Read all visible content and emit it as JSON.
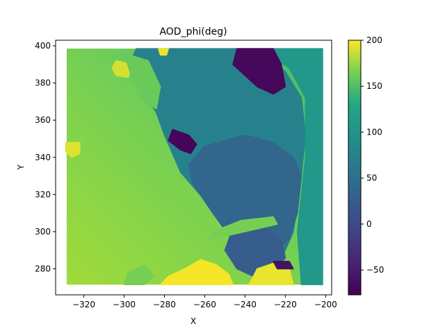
{
  "chart_data": {
    "type": "heatmap",
    "title": "AOD_phi(deg)",
    "xlabel": "X",
    "ylabel": "Y",
    "xlim": [
      -334,
      -197
    ],
    "ylim": [
      266,
      403
    ],
    "x_range": [
      -328.5,
      -201.5
    ],
    "y_range": [
      271.5,
      398.5
    ],
    "grid": false,
    "x_ticks": [
      -320,
      -300,
      -280,
      -260,
      -240,
      -220,
      -200
    ],
    "y_ticks": [
      280,
      300,
      320,
      340,
      360,
      380,
      400
    ],
    "x_tick_labels": [
      "−320",
      "−300",
      "−280",
      "−260",
      "−240",
      "−220",
      "−200"
    ],
    "y_tick_labels": [
      "280",
      "300",
      "320",
      "340",
      "360",
      "380",
      "400"
    ],
    "colorbar": {
      "colormap": "viridis",
      "vmin": -77,
      "vmax": 200,
      "ticks": [
        -50,
        0,
        50,
        100,
        150,
        200
      ],
      "tick_labels": [
        "−50",
        "0",
        "50",
        "100",
        "150",
        "200"
      ]
    },
    "regions": [
      {
        "desc": "background gradient",
        "value": 140
      },
      {
        "desc": "upper diagonal band",
        "value": 75,
        "polygon": [
          [
            -294,
            398.5
          ],
          [
            -232,
            398.5
          ],
          [
            -220,
            386
          ],
          [
            -212,
            372
          ],
          [
            -210,
            352
          ],
          [
            -212,
            330
          ],
          [
            -216,
            300
          ],
          [
            -222,
            285
          ],
          [
            -232,
            278
          ],
          [
            -240,
            286
          ],
          [
            -246,
            296
          ],
          [
            -252,
            304
          ],
          [
            -256,
            312
          ],
          [
            -264,
            322
          ],
          [
            -272,
            332
          ],
          [
            -276,
            342
          ],
          [
            -280,
            352
          ],
          [
            -284,
            364
          ],
          [
            -290,
            374
          ],
          [
            -298,
            388
          ]
        ]
      },
      {
        "desc": "right green strip",
        "value": 108,
        "polygon": [
          [
            -232,
            398.5
          ],
          [
            -201.5,
            398.5
          ],
          [
            -201.5,
            271.5
          ],
          [
            -212,
            271.5
          ],
          [
            -214,
            300
          ],
          [
            -210,
            340
          ],
          [
            -210,
            372
          ],
          [
            -218,
            388
          ]
        ]
      },
      {
        "desc": "middle blue region",
        "value": 38,
        "polygon": [
          [
            -260,
            346
          ],
          [
            -240,
            352
          ],
          [
            -226,
            348
          ],
          [
            -216,
            340
          ],
          [
            -212,
            330
          ],
          [
            -214,
            310
          ],
          [
            -218,
            296
          ],
          [
            -224,
            290
          ],
          [
            -236,
            288
          ],
          [
            -248,
            298
          ],
          [
            -256,
            310
          ],
          [
            -266,
            326
          ],
          [
            -268,
            336
          ]
        ]
      },
      {
        "desc": "lower blue blob",
        "value": 25,
        "polygon": [
          [
            -246,
            302
          ],
          [
            -230,
            302
          ],
          [
            -222,
            296
          ],
          [
            -220,
            286
          ],
          [
            -226,
            278
          ],
          [
            -236,
            276
          ],
          [
            -244,
            280
          ],
          [
            -250,
            290
          ]
        ]
      },
      {
        "desc": "top dark patch",
        "value": -70,
        "polygon": [
          [
            -244,
            398.5
          ],
          [
            -226,
            398.5
          ],
          [
            -222,
            390
          ],
          [
            -220,
            378
          ],
          [
            -226,
            374
          ],
          [
            -234,
            378
          ],
          [
            -240,
            384
          ],
          [
            -246,
            390
          ]
        ]
      },
      {
        "desc": "dark patch mid-left",
        "value": -72,
        "polygon": [
          [
            -276,
            355
          ],
          [
            -268,
            352
          ],
          [
            -264,
            347
          ],
          [
            -267,
            342
          ],
          [
            -272,
            344
          ],
          [
            -278,
            349
          ]
        ]
      },
      {
        "desc": "bottom yellow band",
        "value": 198,
        "polygon": [
          [
            -282,
            271.5
          ],
          [
            -246,
            271.5
          ],
          [
            -248,
            277
          ],
          [
            -254,
            282
          ],
          [
            -262,
            285
          ],
          [
            -270,
            280
          ],
          [
            -278,
            276
          ]
        ]
      },
      {
        "desc": "bottom right yellow patch",
        "value": 195,
        "polygon": [
          [
            -238,
            271.5
          ],
          [
            -216,
            271.5
          ],
          [
            -218,
            280
          ],
          [
            -226,
            283
          ],
          [
            -234,
            280
          ]
        ]
      },
      {
        "desc": "yellow spot left",
        "value": 192,
        "polygon": [
          [
            -329,
            348
          ],
          [
            -322,
            348
          ],
          [
            -322,
            342
          ],
          [
            -326,
            340
          ],
          [
            -329,
            343
          ]
        ]
      },
      {
        "desc": "yellow spot top",
        "value": 190,
        "polygon": [
          [
            -304,
            392
          ],
          [
            -296,
            390
          ],
          [
            -298,
            383
          ],
          [
            -304,
            384
          ],
          [
            -306,
            388
          ]
        ]
      },
      {
        "desc": "yellow spot top-center",
        "value": 196,
        "polygon": [
          [
            -283,
            398.5
          ],
          [
            -278,
            398.5
          ],
          [
            -279,
            395
          ],
          [
            -282,
            395
          ]
        ]
      },
      {
        "desc": "light green diagonal streak",
        "value": 165,
        "polygon": [
          [
            -242,
            306
          ],
          [
            -226,
            308
          ],
          [
            -224,
            304
          ],
          [
            -232,
            302
          ],
          [
            -248,
            298
          ],
          [
            -258,
            296
          ],
          [
            -256,
            300
          ]
        ]
      },
      {
        "desc": "light green streak 2",
        "value": 160,
        "polygon": [
          [
            -300,
            396
          ],
          [
            -288,
            392
          ],
          [
            -282,
            378
          ],
          [
            -284,
            366
          ],
          [
            -290,
            370
          ],
          [
            -296,
            382
          ]
        ]
      },
      {
        "desc": "bottom-left light green",
        "value": 165,
        "polygon": [
          [
            -300,
            271.5
          ],
          [
            -290,
            271.5
          ],
          [
            -285,
            276
          ],
          [
            -290,
            282
          ],
          [
            -298,
            278
          ]
        ]
      },
      {
        "desc": "dark spot bottom",
        "value": -60,
        "polygon": [
          [
            -226,
            284
          ],
          [
            -218,
            284
          ],
          [
            -216,
            280
          ],
          [
            -224,
            280
          ]
        ]
      }
    ]
  }
}
